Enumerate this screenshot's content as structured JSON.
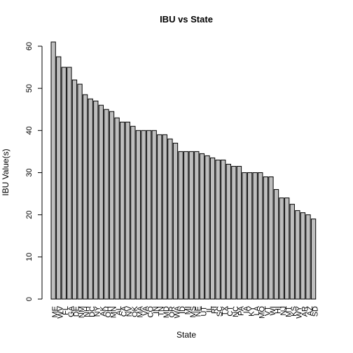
{
  "chart_data": {
    "type": "bar",
    "title": "IBU vs State",
    "x_label": "State",
    "y_label": "IBU Value(s)",
    "categories": [
      "ME",
      "WV",
      "FL",
      "GA",
      "DE",
      "NM",
      "NH",
      "DC",
      "NY",
      "AK",
      "OH",
      "MN",
      "AL",
      "CA",
      "NV",
      "OK",
      "MA",
      "VA",
      "CO",
      "IN",
      "TN",
      "MD",
      "OR",
      "WA",
      "ID",
      "MI",
      "MS",
      "NE",
      "UT",
      "IL",
      "RI",
      "SC",
      "TX",
      "CT",
      "NC",
      "PA",
      "IA",
      "KY",
      "LA",
      "MO",
      "VT",
      "WI",
      "HI",
      "NJ",
      "MT",
      "KS",
      "WY",
      "AR",
      "AZ",
      "SD"
    ],
    "values": [
      61,
      57.5,
      55,
      55,
      52,
      51,
      48.5,
      47.5,
      47,
      46,
      45,
      44.5,
      43,
      42,
      42,
      41,
      40,
      40,
      40,
      40,
      39,
      39,
      38,
      37,
      35,
      35,
      35,
      35,
      34.5,
      34,
      33.5,
      33,
      33,
      32,
      31.5,
      31.5,
      30,
      30,
      30,
      30,
      29,
      29,
      26,
      24,
      24,
      22.5,
      21,
      20.5,
      20,
      19
    ],
    "color": "#bebebe",
    "ylim": [
      0,
      63.4
    ],
    "yticks": [
      0,
      10,
      20,
      30,
      40,
      50,
      60
    ]
  }
}
